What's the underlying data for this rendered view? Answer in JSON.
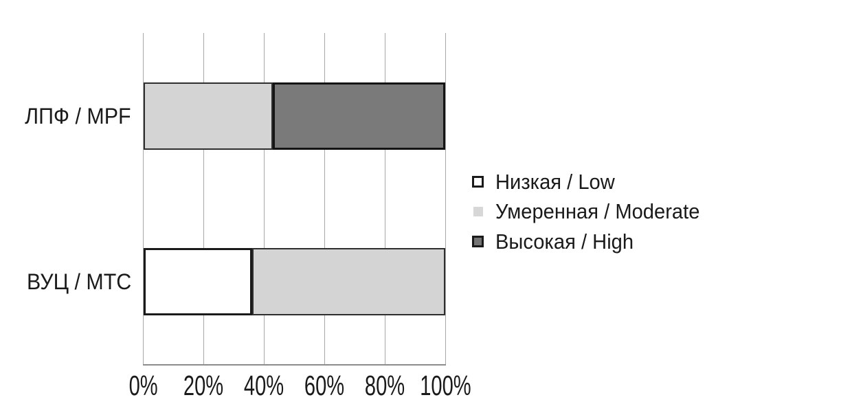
{
  "chart_data": {
    "type": "bar",
    "orientation": "horizontal",
    "stacked": true,
    "title": "",
    "xlabel": "",
    "ylabel": "",
    "categories": [
      "ЛПФ / MPF",
      "ВУЦ / МТС"
    ],
    "series": [
      {
        "name": "Низкая / Low",
        "values": [
          0,
          36
        ],
        "fill": "#ffffff",
        "border": "#1a1a1a",
        "border_px": 3
      },
      {
        "name": "Умеренная / Moderate",
        "values": [
          43,
          64
        ],
        "fill": "#d4d4d4",
        "border": "#2e2e2e",
        "border_px": 2
      },
      {
        "name": "Высокая / High",
        "values": [
          57,
          0
        ],
        "fill": "#7a7a7a",
        "border": "#141414",
        "border_px": 3
      }
    ],
    "x_ticks": [
      "0%",
      "20%",
      "40%",
      "60%",
      "80%",
      "100%"
    ],
    "x_tick_values": [
      0,
      20,
      40,
      60,
      80,
      100
    ],
    "xlim": [
      0,
      100
    ],
    "grid": "vertical",
    "legend_position": "right"
  },
  "colors": {
    "background": "#ffffff",
    "gridline": "#a8a8a8",
    "axis_line": "#8c8c8c",
    "text": "#1a1a1a"
  }
}
